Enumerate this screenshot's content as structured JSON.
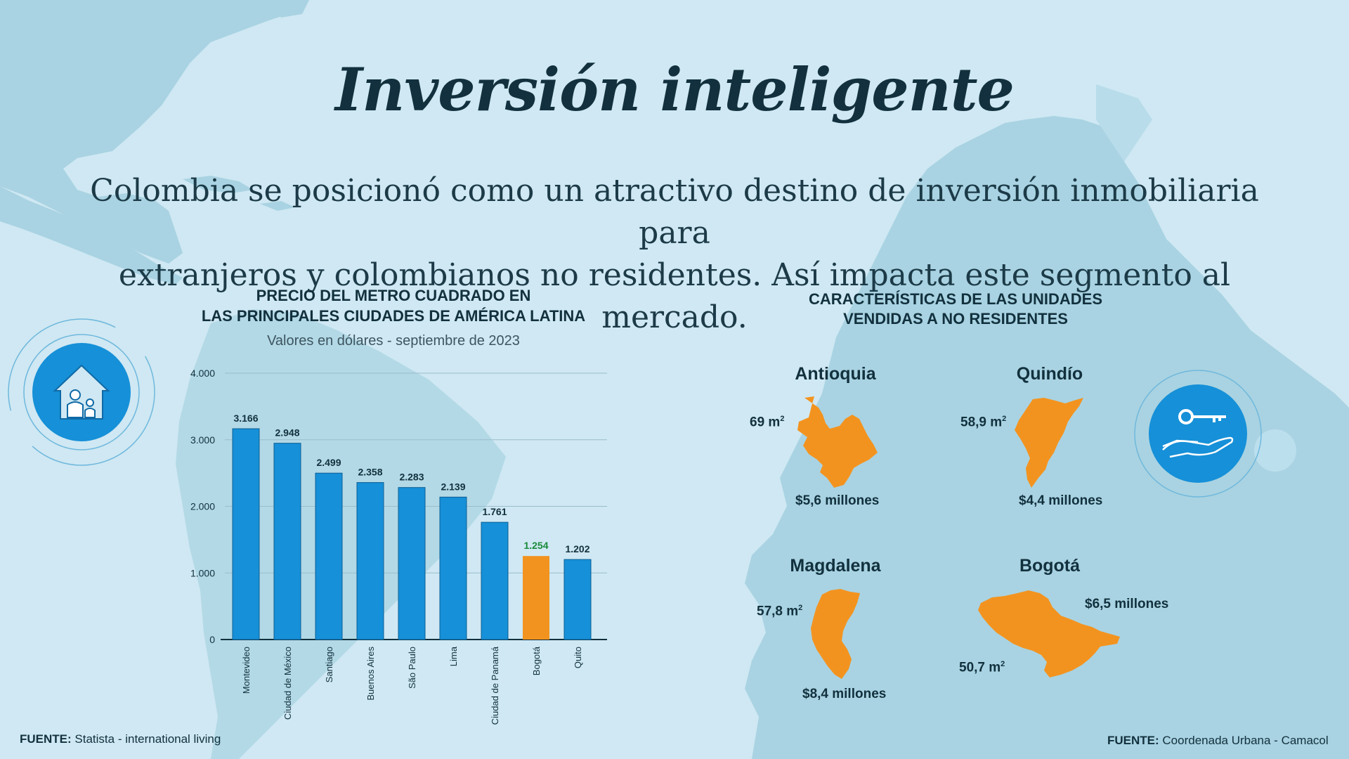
{
  "title": "Inversión inteligente",
  "subtitle_line1": "Colombia se posicionó como un atractivo destino de inversión inmobiliaria para",
  "subtitle_line2": "extranjeros y colombianos no residentes. Así impacta este segmento al mercado.",
  "colors": {
    "background": "#cfe8f3",
    "land": "#a9d3e2",
    "bar": "#1690d8",
    "highlight_bar": "#f3931f",
    "highlight_label": "#1a8a3a",
    "region_fill": "#f3931f",
    "icon_circle": "#1690d8"
  },
  "icons": {
    "left": "house-family-icon",
    "right": "key-hand-icon"
  },
  "chart_data": {
    "type": "bar",
    "title_line1": "PRECIO DEL METRO CUADRADO EN",
    "title_line2": "LAS PRINCIPALES CIUDADES DE AMÉRICA LATINA",
    "subtitle": "Valores en dólares - septiembre de 2023",
    "categories": [
      "Montevideo",
      "Ciudad de México",
      "Santiago",
      "Buenos Aires",
      "São Paulo",
      "Lima",
      "Ciudad de Panamá",
      "Bogotá",
      "Quito"
    ],
    "values": [
      3166,
      2948,
      2499,
      2358,
      2283,
      2139,
      1761,
      1254,
      1202
    ],
    "value_labels": [
      "3.166",
      "2.948",
      "2.499",
      "2.358",
      "2.283",
      "2.139",
      "1.761",
      "1.254",
      "1.202"
    ],
    "highlight_index": 7,
    "ylim": [
      0,
      4000
    ],
    "yticks": [
      0,
      1000,
      2000,
      3000,
      4000
    ],
    "ytick_labels": [
      "0",
      "1.000",
      "2.000",
      "3.000",
      "4.000"
    ],
    "grid": true,
    "source_label": "FUENTE:",
    "source_text": "Statista - international living"
  },
  "units_section": {
    "title_line1": "CARACTERÍSTICAS DE LAS UNIDADES",
    "title_line2": "VENDIDAS A NO RESIDENTES",
    "regions": [
      {
        "name": "Antioquia",
        "area": "69 m",
        "area_sup": "2",
        "price": "$5,6 millones"
      },
      {
        "name": "Quindío",
        "area": "58,9 m",
        "area_sup": "2",
        "price": "$4,4 millones"
      },
      {
        "name": "Magdalena",
        "area": "57,8 m",
        "area_sup": "2",
        "price": "$8,4 millones"
      },
      {
        "name": "Bogotá",
        "area": "50,7 m",
        "area_sup": "2",
        "price": "$6,5 millones"
      }
    ],
    "source_label": "FUENTE:",
    "source_text": "Coordenada Urbana - Camacol"
  }
}
